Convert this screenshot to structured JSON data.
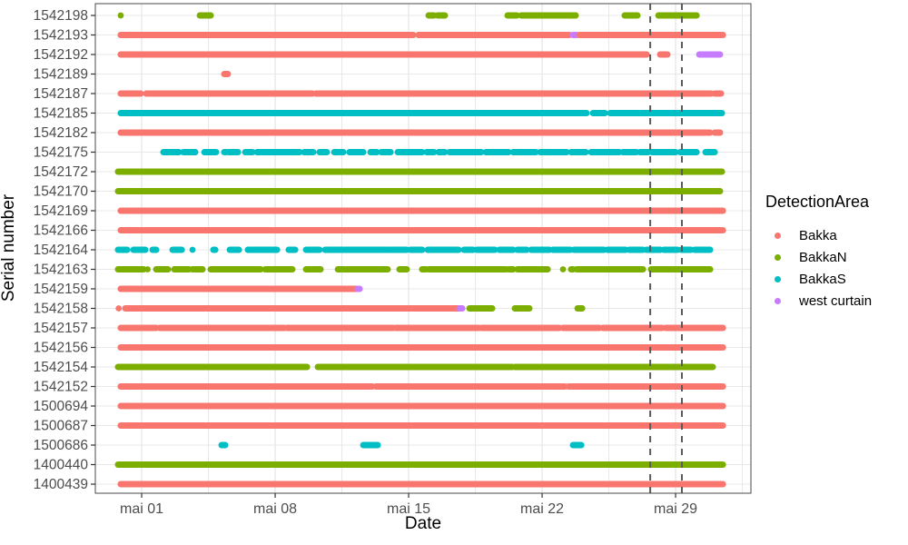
{
  "chart_data": {
    "type": "scatter",
    "xlabel": "Date",
    "ylabel": "Serial number",
    "x_axis": {
      "domain": [
        -1.43,
        32.95
      ],
      "unit": "day of May",
      "ticks": [
        {
          "v": 1,
          "label": "mai 01"
        },
        {
          "v": 8,
          "label": "mai 08"
        },
        {
          "v": 15,
          "label": "mai 15"
        },
        {
          "v": 22,
          "label": "mai 22"
        },
        {
          "v": 29,
          "label": "mai 29"
        }
      ],
      "minor_ticks": [
        4.5,
        11.5,
        18.5,
        25.5,
        32.5
      ]
    },
    "reference_lines": {
      "style": "dashed",
      "x_values": [
        27.67,
        29.33
      ]
    },
    "legend": {
      "title": "DetectionArea",
      "entries": [
        {
          "label": "Bakka",
          "color": "#F8766D"
        },
        {
          "label": "BakkaN",
          "color": "#7CAE00"
        },
        {
          "label": "BakkaS",
          "color": "#00BFC4"
        },
        {
          "label": "west curtain",
          "color": "#C77CFF"
        }
      ]
    },
    "colors": {
      "Bakka": "#F8766D",
      "BakkaN": "#7CAE00",
      "BakkaS": "#00BFC4",
      "west curtain": "#C77CFF"
    },
    "rows": [
      {
        "serial": "1542198",
        "runs": [
          {
            "area": "BakkaN",
            "segs": [
              [
                -0.1,
                -0.1
              ],
              [
                4.05,
                4.62
              ],
              [
                16.05,
                16.33
              ],
              [
                16.52,
                16.9
              ],
              [
                20.19,
                20.67
              ],
              [
                20.9,
                23.76
              ],
              [
                26.33,
                27.0
              ],
              [
                28.1,
                30.1
              ]
            ]
          }
        ]
      },
      {
        "serial": "1542193",
        "runs": [
          {
            "area": "Bakka",
            "segs": [
              [
                -0.1,
                15.24
              ],
              [
                15.52,
                23.43
              ]
            ]
          },
          {
            "area": "west curtain",
            "segs": [
              [
                23.62,
                23.8
              ]
            ]
          },
          {
            "area": "Bakka",
            "segs": [
              [
                23.95,
                31.48
              ]
            ]
          }
        ]
      },
      {
        "serial": "1542192",
        "runs": [
          {
            "area": "Bakka",
            "segs": [
              [
                -0.1,
                27.48
              ],
              [
                28.19,
                28.57
              ]
            ]
          },
          {
            "area": "west curtain",
            "segs": [
              [
                30.24,
                31.33
              ]
            ]
          }
        ]
      },
      {
        "serial": "1542189",
        "runs": [
          {
            "area": "Bakka",
            "segs": [
              [
                5.33,
                5.52
              ]
            ]
          }
        ]
      },
      {
        "serial": "1542187",
        "runs": [
          {
            "area": "Bakka",
            "segs": [
              [
                -0.1,
                0.95
              ],
              [
                1.24,
                9.95
              ],
              [
                10.14,
                30.86
              ],
              [
                31.05,
                31.38
              ]
            ]
          }
        ]
      },
      {
        "serial": "1542185",
        "runs": [
          {
            "area": "BakkaS",
            "segs": [
              [
                -0.1,
                24.33
              ],
              [
                24.67,
                25.29
              ],
              [
                25.57,
                31.43
              ]
            ]
          }
        ]
      },
      {
        "serial": "1542182",
        "runs": [
          {
            "area": "Bakka",
            "segs": [
              [
                -0.1,
                30.81
              ],
              [
                31.05,
                31.33
              ]
            ]
          }
        ]
      },
      {
        "serial": "1542175",
        "runs": [
          {
            "area": "BakkaS",
            "segs": [
              [
                2.14,
                2.95
              ],
              [
                3.19,
                3.81
              ],
              [
                4.29,
                4.9
              ],
              [
                5.33,
                5.43
              ],
              [
                5.57,
                6.05
              ],
              [
                6.43,
                6.81
              ],
              [
                7.05,
                9.29
              ],
              [
                9.52,
                10.0
              ],
              [
                10.33,
                10.71
              ],
              [
                11.1,
                11.57
              ],
              [
                11.9,
                12.62
              ],
              [
                13.0,
                13.33
              ],
              [
                13.57,
                14.05
              ],
              [
                14.43,
                15.71
              ],
              [
                15.95,
                16.33
              ],
              [
                16.57,
                16.9
              ],
              [
                17.14,
                18.81
              ],
              [
                19.05,
                20.24
              ],
              [
                20.48,
                21.67
              ],
              [
                21.9,
                23.29
              ],
              [
                23.52,
                24.29
              ],
              [
                24.57,
                26.05
              ],
              [
                26.24,
                26.95
              ],
              [
                27.14,
                27.57
              ],
              [
                27.76,
                29.0
              ],
              [
                29.24,
                30.1
              ],
              [
                30.57,
                31.05
              ]
            ]
          }
        ]
      },
      {
        "serial": "1542172",
        "runs": [
          {
            "area": "BakkaN",
            "segs": [
              [
                -0.24,
                31.43
              ]
            ]
          }
        ]
      },
      {
        "serial": "1542170",
        "runs": [
          {
            "area": "BakkaN",
            "segs": [
              [
                -0.24,
                31.33
              ]
            ]
          }
        ]
      },
      {
        "serial": "1542169",
        "runs": [
          {
            "area": "Bakka",
            "segs": [
              [
                -0.1,
                31.48
              ]
            ]
          }
        ]
      },
      {
        "serial": "1542166",
        "runs": [
          {
            "area": "Bakka",
            "segs": [
              [
                -0.1,
                31.48
              ]
            ]
          }
        ]
      },
      {
        "serial": "1542164",
        "runs": [
          {
            "area": "BakkaS",
            "segs": [
              [
                -0.24,
                0.24
              ],
              [
                0.57,
                1.19
              ],
              [
                1.57,
                1.76
              ],
              [
                2.62,
                3.1
              ],
              [
                3.62,
                3.71
              ],
              [
                4.76,
                4.86
              ],
              [
                5.62,
                6.1
              ],
              [
                6.57,
                8.1
              ],
              [
                8.71,
                9.05
              ],
              [
                9.62,
                10.33
              ],
              [
                10.62,
                14.05
              ],
              [
                14.14,
                14.9
              ],
              [
                15.1,
                15.71
              ],
              [
                16.0,
                17.62
              ],
              [
                17.9,
                18.38
              ],
              [
                18.57,
                19.52
              ],
              [
                19.76,
                20.48
              ],
              [
                20.71,
                21.19
              ],
              [
                21.43,
                22.38
              ],
              [
                22.57,
                23.48
              ],
              [
                23.67,
                25.24
              ],
              [
                25.43,
                26.38
              ],
              [
                26.57,
                27.29
              ],
              [
                27.48,
                28.19
              ],
              [
                28.38,
                29.1
              ],
              [
                29.29,
                29.81
              ],
              [
                30.0,
                30.81
              ]
            ]
          }
        ]
      },
      {
        "serial": "1542163",
        "runs": [
          {
            "area": "BakkaN",
            "segs": [
              [
                -0.24,
                1.1
              ],
              [
                1.29,
                1.33
              ],
              [
                1.76,
                2.38
              ],
              [
                2.71,
                3.48
              ],
              [
                3.67,
                4.19
              ],
              [
                4.62,
                7.24
              ],
              [
                7.48,
                8.9
              ],
              [
                9.62,
                10.38
              ],
              [
                11.29,
                13.9
              ],
              [
                14.52,
                14.9
              ],
              [
                15.71,
                15.9
              ],
              [
                16.05,
                20.1
              ],
              [
                20.24,
                20.48
              ],
              [
                20.71,
                22.29
              ],
              [
                23.05,
                23.14
              ],
              [
                23.52,
                23.62
              ],
              [
                23.81,
                27.29
              ],
              [
                27.71,
                30.81
              ]
            ]
          }
        ]
      },
      {
        "serial": "1542159",
        "runs": [
          {
            "area": "Bakka",
            "segs": [
              [
                -0.1,
                12.29
              ]
            ]
          },
          {
            "area": "west curtain",
            "segs": [
              [
                12.33,
                12.43
              ]
            ]
          }
        ]
      },
      {
        "serial": "1542158",
        "runs": [
          {
            "area": "Bakka",
            "segs": [
              [
                -0.24,
                -0.17
              ],
              [
                0.14,
                17.62
              ]
            ]
          },
          {
            "area": "west curtain",
            "segs": [
              [
                17.67,
                17.81
              ]
            ]
          },
          {
            "area": "BakkaN",
            "segs": [
              [
                18.19,
                19.38
              ],
              [
                20.57,
                21.33
              ],
              [
                23.86,
                24.1
              ]
            ]
          }
        ]
      },
      {
        "serial": "1542157",
        "runs": [
          {
            "area": "Bakka",
            "segs": [
              [
                -0.1,
                1.76
              ],
              [
                1.95,
                8.48
              ],
              [
                8.62,
                14.19
              ],
              [
                14.33,
                18.67
              ],
              [
                18.81,
                22.9
              ],
              [
                23.1,
                25.0
              ],
              [
                25.19,
                28.29
              ],
              [
                28.48,
                31.48
              ]
            ]
          }
        ]
      },
      {
        "serial": "1542156",
        "runs": [
          {
            "area": "Bakka",
            "segs": [
              [
                -0.1,
                31.48
              ]
            ]
          }
        ]
      },
      {
        "serial": "1542154",
        "runs": [
          {
            "area": "BakkaN",
            "segs": [
              [
                -0.24,
                9.67
              ],
              [
                10.24,
                20.43
              ],
              [
                20.57,
                30.95
              ]
            ]
          }
        ]
      },
      {
        "serial": "1542152",
        "runs": [
          {
            "area": "Bakka",
            "segs": [
              [
                -0.1,
                13.1
              ],
              [
                13.29,
                23.19
              ],
              [
                23.38,
                31.48
              ]
            ]
          }
        ]
      },
      {
        "serial": "1500694",
        "runs": [
          {
            "area": "Bakka",
            "segs": [
              [
                -0.1,
                31.48
              ]
            ]
          }
        ]
      },
      {
        "serial": "1500687",
        "runs": [
          {
            "area": "Bakka",
            "segs": [
              [
                -0.1,
                31.48
              ]
            ]
          }
        ]
      },
      {
        "serial": "1500686",
        "runs": [
          {
            "area": "BakkaS",
            "segs": [
              [
                5.19,
                5.38
              ],
              [
                12.62,
                13.38
              ],
              [
                23.62,
                24.05
              ]
            ]
          }
        ]
      },
      {
        "serial": "1400440",
        "runs": [
          {
            "area": "BakkaN",
            "segs": [
              [
                -0.24,
                31.48
              ]
            ]
          }
        ]
      },
      {
        "serial": "1400439",
        "runs": [
          {
            "area": "Bakka",
            "segs": [
              [
                -0.1,
                31.48
              ]
            ]
          }
        ]
      }
    ],
    "style_colors": {
      "grid": "#E8E8E8",
      "panel_border": "#4a4a4a",
      "tick": "#333333",
      "tick_text": "#4D4D4D",
      "reference_line": "#5a5a5a"
    }
  }
}
